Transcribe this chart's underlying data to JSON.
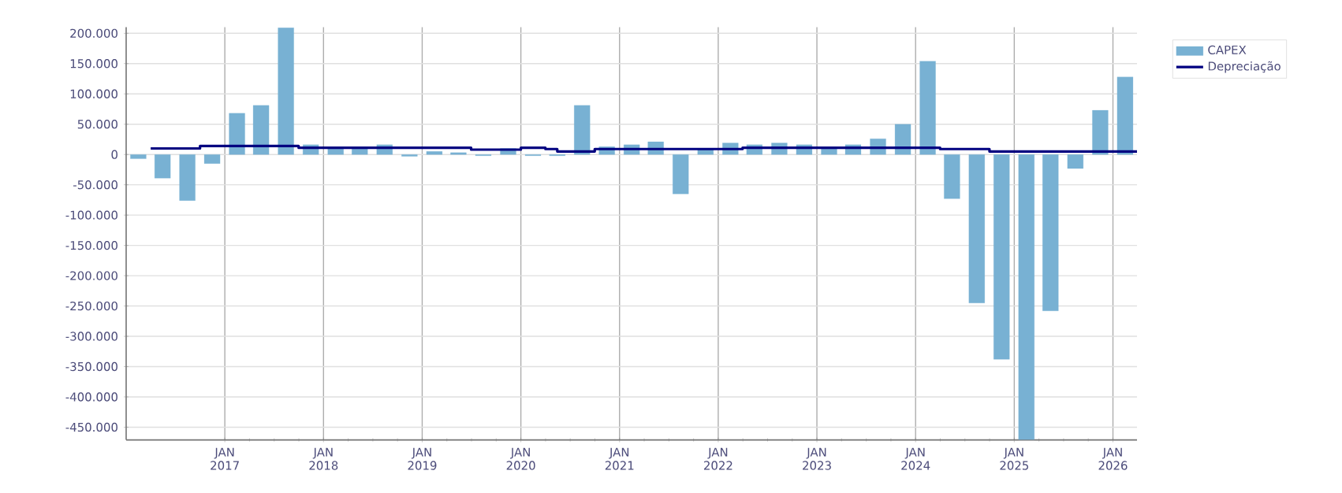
{
  "chart_data": {
    "type": "bar",
    "series": [
      {
        "name": "CAPEX",
        "color": "#78b1d3",
        "x": [
          "2016-02-15",
          "2016-05-15",
          "2016-08-15",
          "2016-11-15",
          "2017-02-15",
          "2017-05-15",
          "2017-08-15",
          "2017-11-15",
          "2018-02-15",
          "2018-05-15",
          "2018-08-15",
          "2018-11-15",
          "2019-02-15",
          "2019-05-15",
          "2019-08-15",
          "2019-11-15",
          "2020-02-15",
          "2020-05-15",
          "2020-08-15",
          "2020-11-15",
          "2021-02-15",
          "2021-05-15",
          "2021-08-15",
          "2021-11-15",
          "2022-02-15",
          "2022-05-15",
          "2022-08-15",
          "2022-11-15",
          "2023-02-15",
          "2023-05-15",
          "2023-08-15",
          "2023-11-15",
          "2024-02-15",
          "2024-05-15",
          "2024-08-15",
          "2024-11-15",
          "2025-02-15",
          "2025-05-15",
          "2025-08-15",
          "2025-11-15",
          "2026-02-15"
        ],
        "values": [
          -7000,
          -39000,
          -76000,
          -15000,
          68000,
          81000,
          209000,
          16000,
          12000,
          12000,
          16000,
          -3000,
          5000,
          3000,
          -2000,
          10000,
          -2000,
          -2000,
          81000,
          13000,
          16000,
          21000,
          -65000,
          10000,
          19000,
          16000,
          19000,
          16000,
          11000,
          16000,
          26000,
          50000,
          154000,
          -73000,
          -245000,
          -338000,
          -471000,
          -258000,
          -23000,
          73000,
          128000
        ]
      },
      {
        "name": "Depreciação",
        "type": "step",
        "color": "#000080",
        "x": [
          "2016-04-01",
          "2016-10-01",
          "2017-10-01",
          "2019-07-01",
          "2020-01-01",
          "2020-04-01",
          "2020-05-15",
          "2020-10-01",
          "2022-04-01",
          "2024-04-01",
          "2024-10-01",
          "2026-03-31"
        ],
        "values": [
          10000,
          14000,
          11000,
          8000,
          11000,
          9000,
          5000,
          9000,
          11000,
          9000,
          5000,
          5000
        ]
      }
    ],
    "xlim": [
      "2016-01-01",
      "2026-03-31"
    ],
    "xticks": [
      {
        "value": "2017-01-01",
        "label": "JAN 2017"
      },
      {
        "value": "2018-01-01",
        "label": "JAN 2018"
      },
      {
        "value": "2019-01-01",
        "label": "JAN 2019"
      },
      {
        "value": "2020-01-01",
        "label": "JAN 2020"
      },
      {
        "value": "2021-01-01",
        "label": "JAN 2021"
      },
      {
        "value": "2022-01-01",
        "label": "JAN 2022"
      },
      {
        "value": "2023-01-01",
        "label": "JAN 2023"
      },
      {
        "value": "2024-01-01",
        "label": "JAN 2024"
      },
      {
        "value": "2025-01-01",
        "label": "JAN 2025"
      },
      {
        "value": "2026-01-01",
        "label": "JAN 2026"
      }
    ],
    "ylim": [
      -471000,
      210000
    ],
    "yticks": [
      {
        "value": -450000,
        "label": "-450.000"
      },
      {
        "value": -400000,
        "label": "-400.000"
      },
      {
        "value": -350000,
        "label": "-350.000"
      },
      {
        "value": -300000,
        "label": "-300.000"
      },
      {
        "value": -250000,
        "label": "-250.000"
      },
      {
        "value": -200000,
        "label": "-200.000"
      },
      {
        "value": -150000,
        "label": "-150.000"
      },
      {
        "value": -100000,
        "label": "-100.000"
      },
      {
        "value": -50000,
        "label": "-50.000"
      },
      {
        "value": 0,
        "label": "0"
      },
      {
        "value": 50000,
        "label": "50.000"
      },
      {
        "value": 100000,
        "label": "100.000"
      },
      {
        "value": 150000,
        "label": "150.000"
      },
      {
        "value": 200000,
        "label": "200.000"
      }
    ],
    "grid": true,
    "legend": "top right"
  }
}
